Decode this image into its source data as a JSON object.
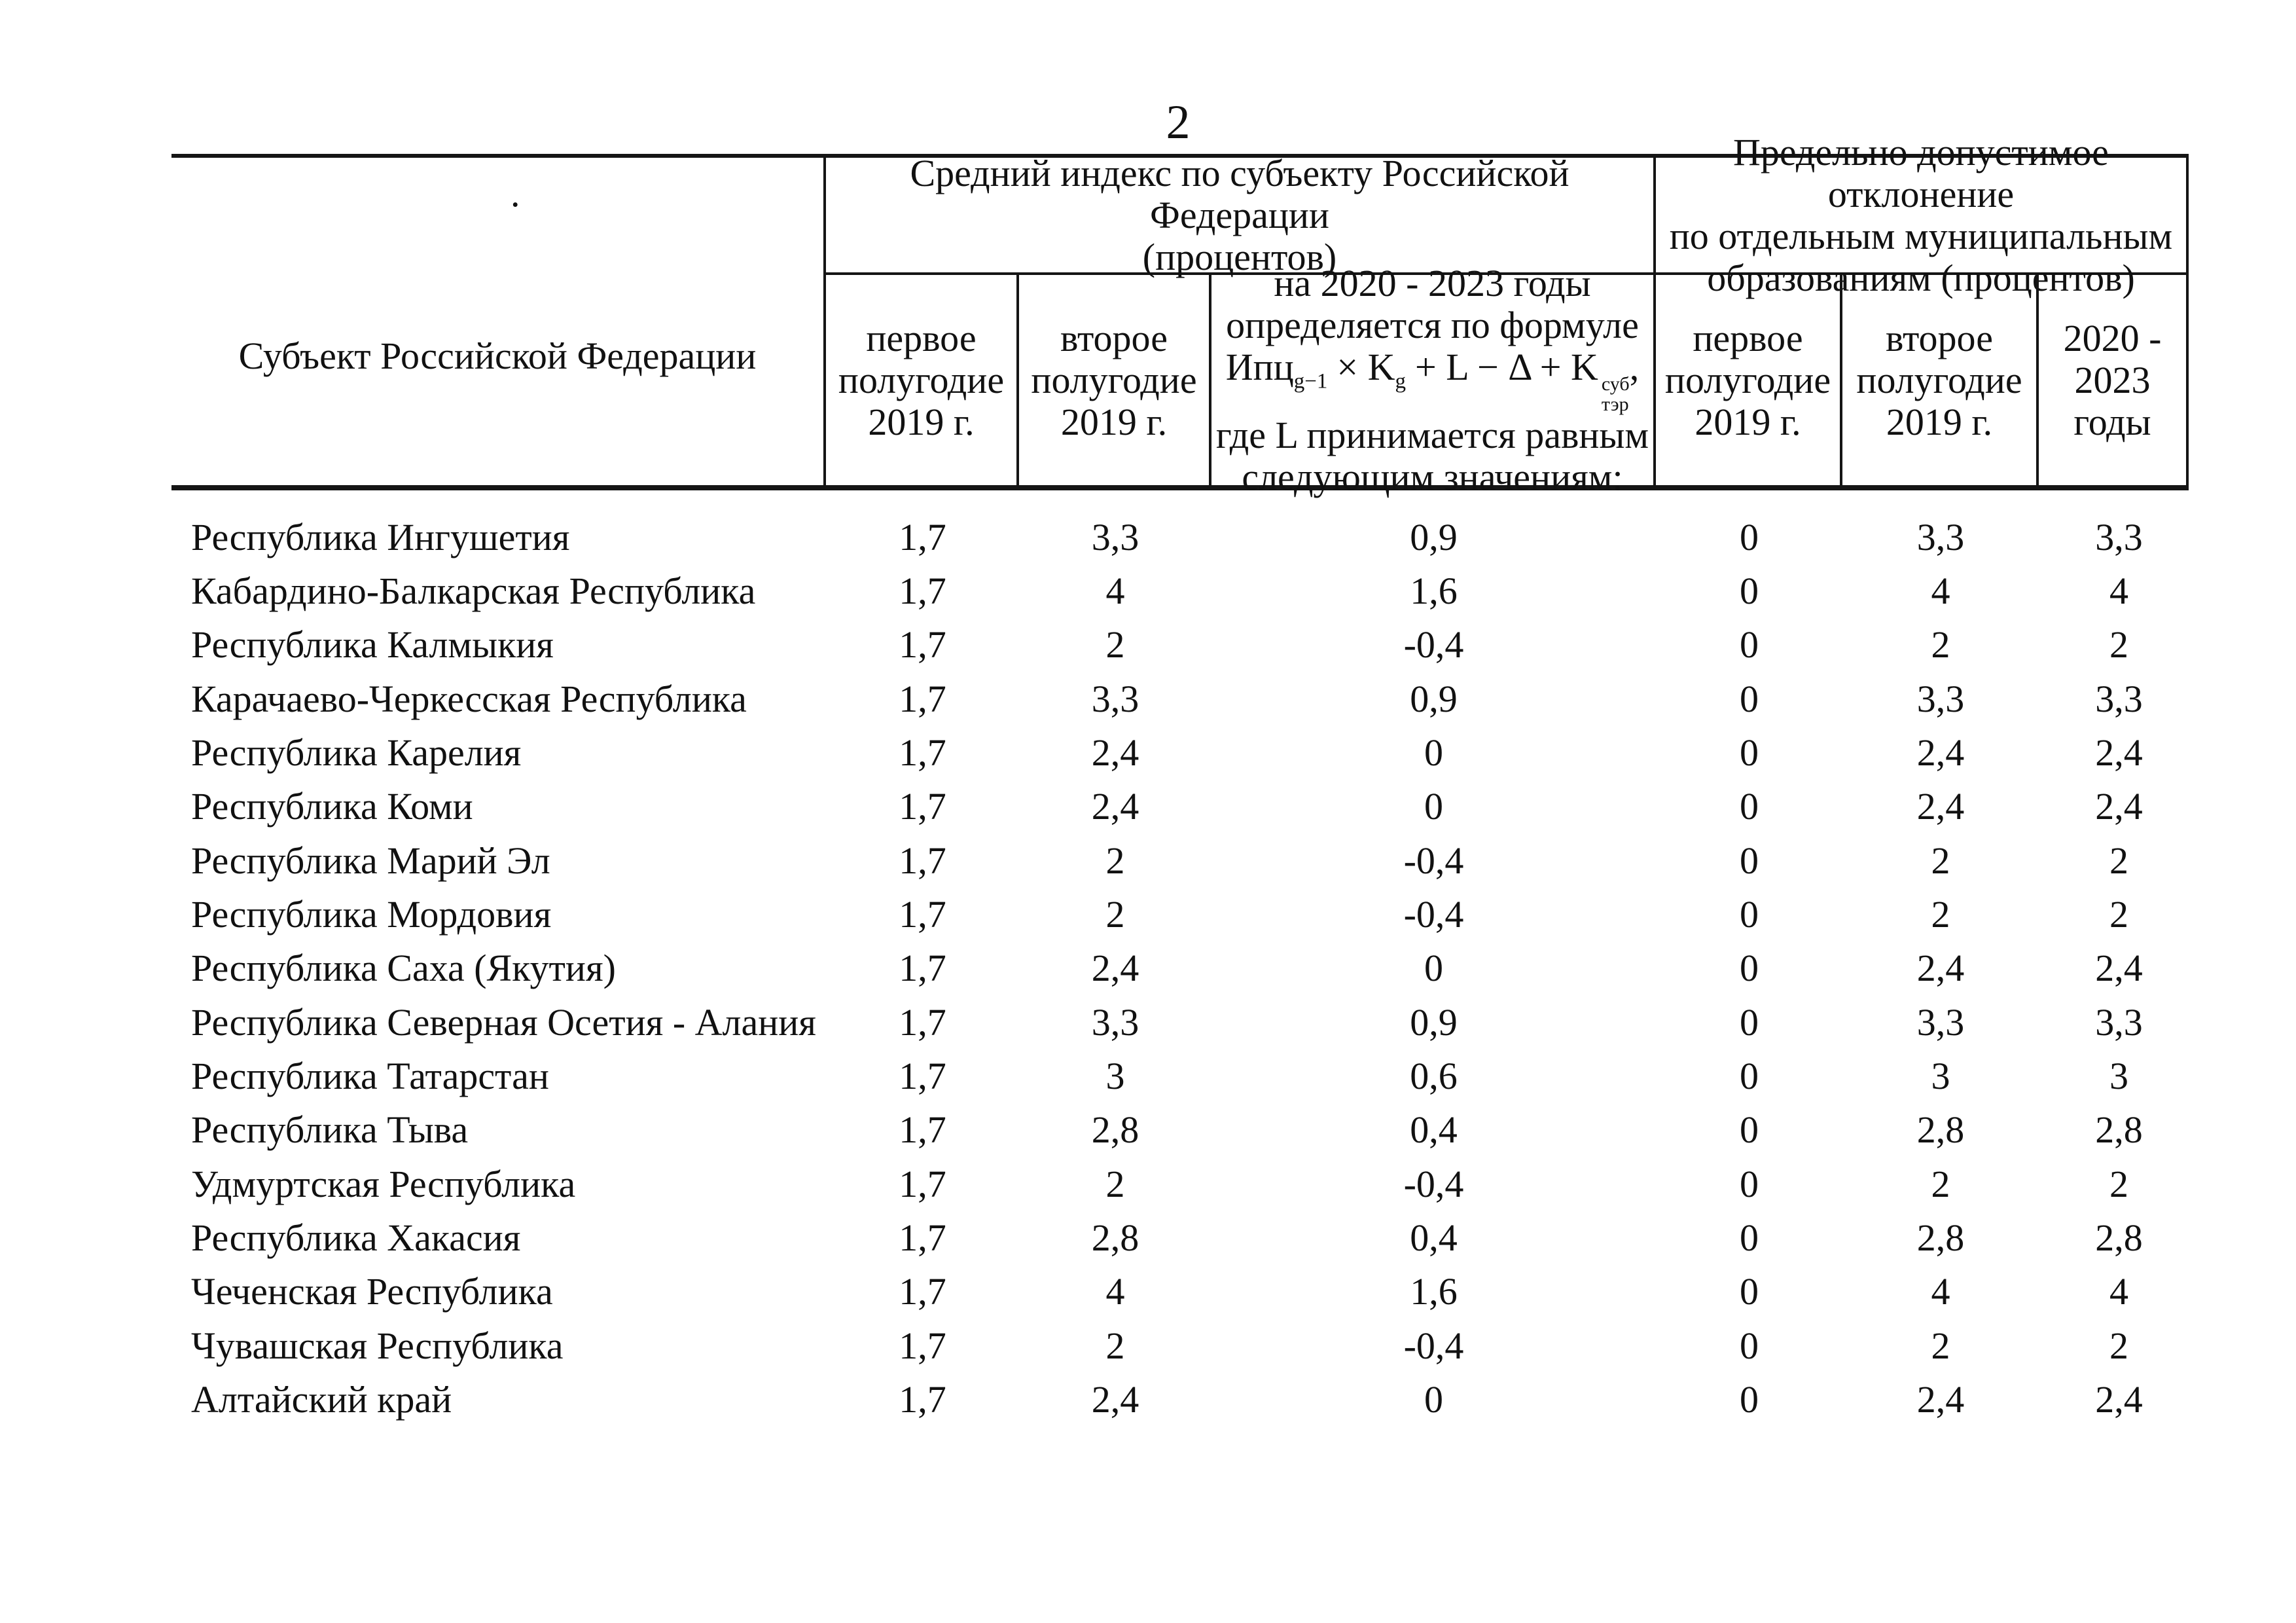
{
  "page": {
    "number": "2"
  },
  "table": {
    "stray_dot": ".",
    "col1_header": "Субъект Российской Федерации",
    "group_avg": {
      "line1": "Средний индекс по субъекту Российской Федерации",
      "line2": "(процентов)"
    },
    "group_dev": {
      "line1": "Предельно допустимое отклонение",
      "line2": "по отдельным муниципальным",
      "line3": "образованиям (процентов)"
    },
    "sub_first_half": {
      "line1": "первое",
      "line2": "полугодие",
      "line3": "2019 г."
    },
    "sub_second_half": {
      "line1": "второе",
      "line2": "полугодие",
      "line3": "2019 г."
    },
    "sub_years": {
      "line1": "2020 -",
      "line2": "2023",
      "line3": "годы"
    },
    "formula_cell": {
      "line1": "на 2020 - 2023 годы",
      "line2": "определяется по формуле",
      "f_base": "Ипц",
      "f_sub1": "g−1",
      "f_mid1": "× K",
      "f_sub2": "g",
      "f_mid2": "+ L − Δ + K",
      "f_sup": "суб",
      "f_sub3": "тэр",
      "f_comma": ",",
      "line4": "где L принимается равным",
      "line5": "следующим значениям:"
    },
    "rows": [
      {
        "name": "Республика Ингушетия",
        "values": [
          "1,7",
          "3,3",
          "0,9",
          "0",
          "3,3",
          "3,3"
        ]
      },
      {
        "name": "Кабардино-Балкарская Республика",
        "values": [
          "1,7",
          "4",
          "1,6",
          "0",
          "4",
          "4"
        ]
      },
      {
        "name": "Республика Калмыкия",
        "values": [
          "1,7",
          "2",
          "-0,4",
          "0",
          "2",
          "2"
        ]
      },
      {
        "name": "Карачаево-Черкесская Республика",
        "values": [
          "1,7",
          "3,3",
          "0,9",
          "0",
          "3,3",
          "3,3"
        ]
      },
      {
        "name": "Республика Карелия",
        "values": [
          "1,7",
          "2,4",
          "0",
          "0",
          "2,4",
          "2,4"
        ]
      },
      {
        "name": "Республика Коми",
        "values": [
          "1,7",
          "2,4",
          "0",
          "0",
          "2,4",
          "2,4"
        ]
      },
      {
        "name": "Республика Марий Эл",
        "values": [
          "1,7",
          "2",
          "-0,4",
          "0",
          "2",
          "2"
        ]
      },
      {
        "name": "Республика Мордовия",
        "values": [
          "1,7",
          "2",
          "-0,4",
          "0",
          "2",
          "2"
        ]
      },
      {
        "name": "Республика Саха (Якутия)",
        "values": [
          "1,7",
          "2,4",
          "0",
          "0",
          "2,4",
          "2,4"
        ]
      },
      {
        "name": "Республика Северная Осетия - Алания",
        "values": [
          "1,7",
          "3,3",
          "0,9",
          "0",
          "3,3",
          "3,3"
        ]
      },
      {
        "name": "Республика Татарстан",
        "values": [
          "1,7",
          "3",
          "0,6",
          "0",
          "3",
          "3"
        ]
      },
      {
        "name": "Республика Тыва",
        "values": [
          "1,7",
          "2,8",
          "0,4",
          "0",
          "2,8",
          "2,8"
        ]
      },
      {
        "name": "Удмуртская Республика",
        "values": [
          "1,7",
          "2",
          "-0,4",
          "0",
          "2",
          "2"
        ]
      },
      {
        "name": "Республика Хакасия",
        "values": [
          "1,7",
          "2,8",
          "0,4",
          "0",
          "2,8",
          "2,8"
        ]
      },
      {
        "name": "Чеченская Республика",
        "values": [
          "1,7",
          "4",
          "1,6",
          "0",
          "4",
          "4"
        ]
      },
      {
        "name": "Чувашская Республика",
        "values": [
          "1,7",
          "2",
          "-0,4",
          "0",
          "2",
          "2"
        ]
      },
      {
        "name": "Алтайский край",
        "values": [
          "1,7",
          "2,4",
          "0",
          "0",
          "2,4",
          "2,4"
        ]
      }
    ]
  }
}
